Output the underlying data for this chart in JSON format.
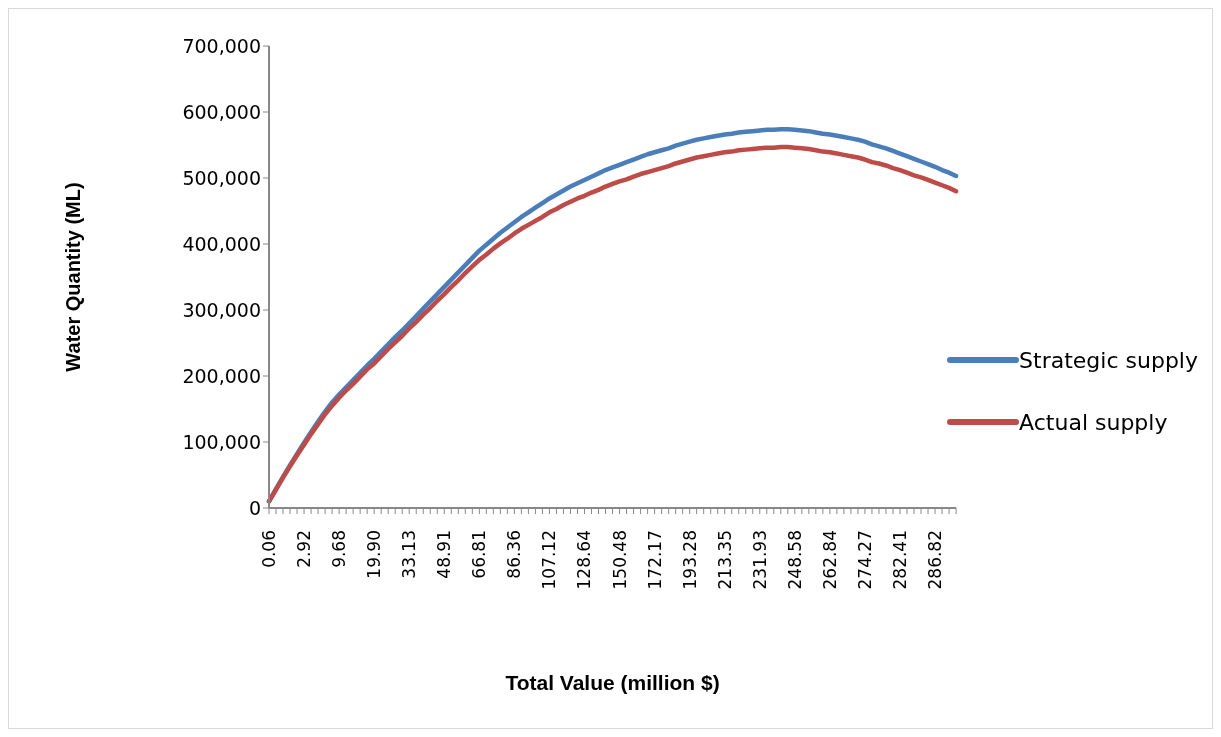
{
  "chart_data": {
    "type": "line",
    "xlabel": "Total Value (million $)",
    "ylabel": "Water Quantity (ML)",
    "categories": [
      "0.06",
      null,
      null,
      null,
      null,
      "2.92",
      null,
      null,
      null,
      null,
      "9.68",
      null,
      null,
      null,
      null,
      "19.90",
      null,
      null,
      null,
      null,
      "33.13",
      null,
      null,
      null,
      null,
      "48.91",
      null,
      null,
      null,
      null,
      "66.81",
      null,
      null,
      null,
      null,
      "86.36",
      null,
      null,
      null,
      null,
      "107.12",
      null,
      null,
      null,
      null,
      "128.64",
      null,
      null,
      null,
      null,
      "150.48",
      null,
      null,
      null,
      null,
      "172.17",
      null,
      null,
      null,
      null,
      "193.28",
      null,
      null,
      null,
      null,
      "213.35",
      null,
      null,
      null,
      null,
      "231.93",
      null,
      null,
      null,
      null,
      "248.58",
      null,
      null,
      null,
      null,
      "262.84",
      null,
      null,
      null,
      null,
      "274.27",
      null,
      null,
      null,
      null,
      "282.41",
      null,
      null,
      null,
      null,
      "286.82",
      null,
      null,
      null
    ],
    "series": [
      {
        "name": "Strategic supply",
        "color": "#4a7ebb",
        "values": [
          10000,
          29000,
          47000,
          65000,
          82000,
          99000,
          115000,
          131000,
          146000,
          160000,
          172000,
          183000,
          194000,
          205000,
          216000,
          226000,
          237000,
          248000,
          259000,
          269000,
          280000,
          291000,
          302000,
          313000,
          324000,
          335000,
          346000,
          357000,
          368000,
          379000,
          390000,
          399000,
          408000,
          417000,
          425000,
          433000,
          441000,
          448000,
          455000,
          462000,
          469000,
          475000,
          481000,
          487000,
          492000,
          497000,
          502000,
          507000,
          512000,
          516000,
          520000,
          524000,
          528000,
          532000,
          536000,
          539000,
          542000,
          545000,
          549000,
          552000,
          555000,
          558000,
          560000,
          562000,
          564000,
          566000,
          567000,
          569000,
          570000,
          571000,
          572000,
          573000,
          573000,
          574000,
          574000,
          573000,
          572000,
          571000,
          569000,
          567000,
          566000,
          564000,
          562000,
          560000,
          558000,
          555000,
          551000,
          548000,
          545000,
          541000,
          537000,
          533000,
          529000,
          525000,
          521000,
          517000,
          512000,
          508000,
          503000
        ]
      },
      {
        "name": "Actual supply",
        "color": "#be4b48",
        "values": [
          10000,
          28000,
          46000,
          63000,
          80000,
          96000,
          112000,
          127000,
          142000,
          155000,
          167000,
          178000,
          188000,
          199000,
          210000,
          219000,
          230000,
          241000,
          251000,
          261000,
          272000,
          282000,
          293000,
          303000,
          314000,
          324000,
          335000,
          345000,
          356000,
          366000,
          376000,
          384000,
          393000,
          401000,
          408000,
          416000,
          423000,
          429000,
          435000,
          441000,
          448000,
          453000,
          459000,
          464000,
          469000,
          473000,
          478000,
          482000,
          487000,
          491000,
          495000,
          498000,
          502000,
          506000,
          509000,
          512000,
          515000,
          518000,
          522000,
          525000,
          528000,
          531000,
          533000,
          535000,
          537000,
          539000,
          540000,
          542000,
          543000,
          544000,
          545000,
          546000,
          546000,
          547000,
          547000,
          546000,
          545000,
          544000,
          542000,
          540000,
          539000,
          537000,
          535000,
          533000,
          531000,
          528000,
          524000,
          522000,
          519000,
          515000,
          512000,
          508000,
          504000,
          501000,
          497000,
          493000,
          489000,
          485000,
          480000
        ]
      }
    ],
    "ylim": [
      0,
      700000
    ],
    "yticks": [
      0,
      {
        "value": 100000,
        "label": "100,000"
      },
      {
        "value": 200000,
        "label": "200,000"
      },
      {
        "value": 300000,
        "label": "300,000"
      },
      {
        "value": 400000,
        "label": "400,000"
      },
      {
        "value": 500000,
        "label": "500,000"
      },
      {
        "value": 600000,
        "label": "600,000"
      },
      {
        "value": 700000,
        "label": "700,000"
      }
    ],
    "grid": false,
    "legend": "right"
  }
}
